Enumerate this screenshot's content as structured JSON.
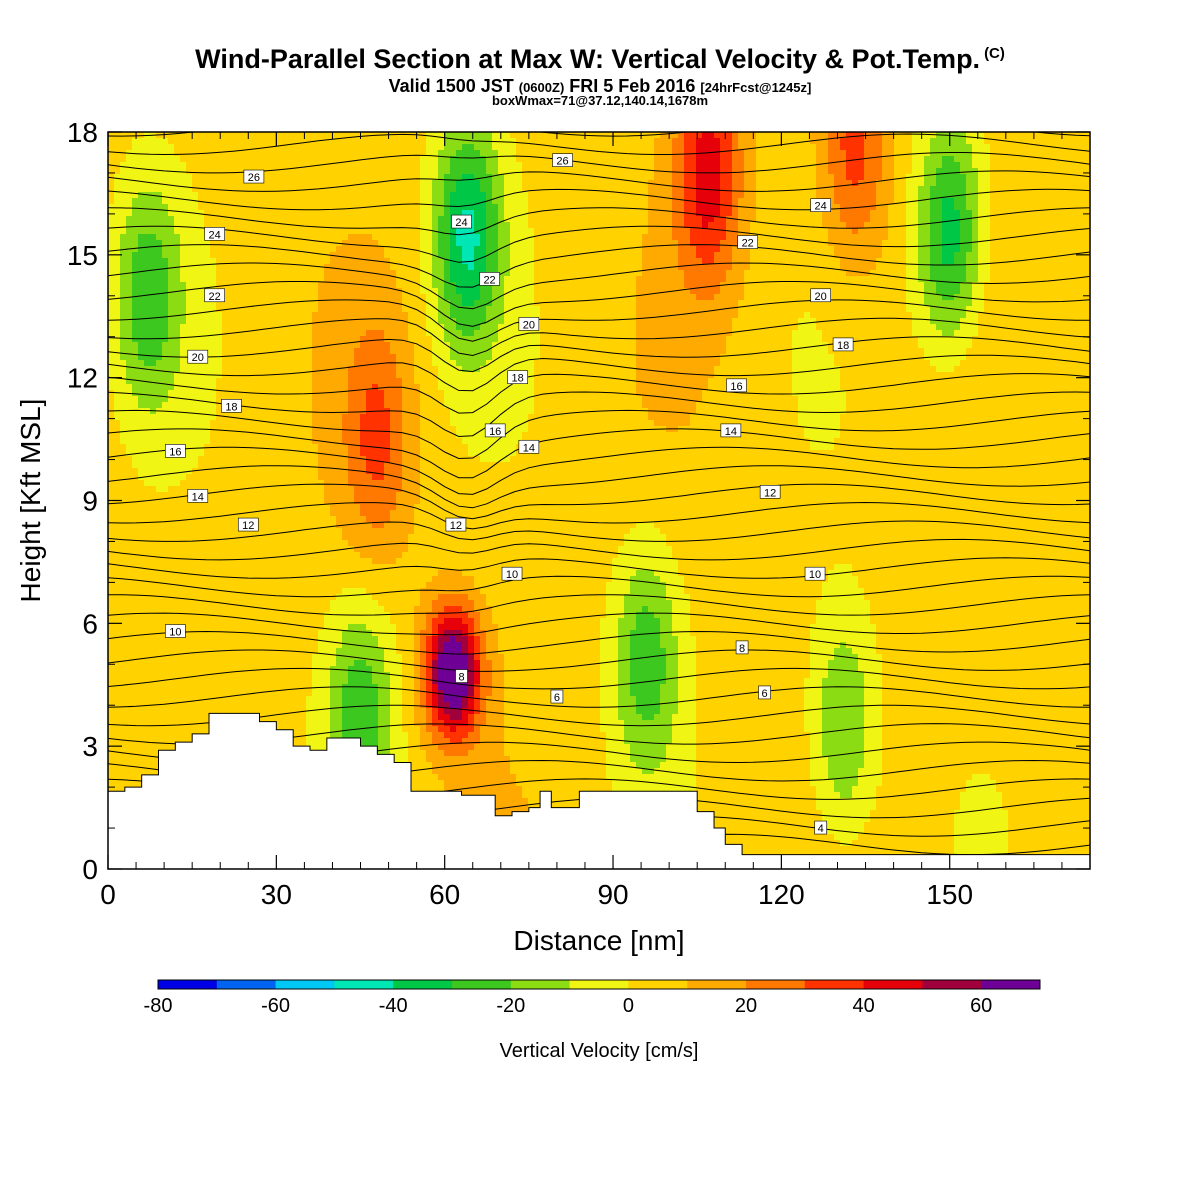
{
  "title": {
    "main": "Wind-Parallel Section at Max W: Vertical Velocity & Pot.Temp.",
    "copyright": "(C)",
    "valid_prefix": "Valid 1500 JST",
    "valid_z": "(0600Z)",
    "valid_date": "FRI 5 Feb 2016",
    "forecast": "[24hrFcst@1245z]",
    "boxwmax": "boxWmax=71@37.12,140.14,1678m"
  },
  "chart_data": {
    "type": "heatmap",
    "xlabel": "Distance [nm]",
    "ylabel": "Height [Kft MSL]",
    "xlim": [
      0,
      175
    ],
    "ylim": [
      0,
      18
    ],
    "xticks": [
      0,
      30,
      60,
      90,
      120,
      150
    ],
    "yticks": [
      0,
      3,
      6,
      9,
      12,
      15,
      18
    ],
    "colorbar": {
      "label": "Vertical Velocity [cm/s]",
      "bounds": [
        -80,
        70
      ],
      "step": 10,
      "tick_labels": [
        "-80",
        "-60",
        "-40",
        "-20",
        "0",
        "20",
        "40",
        "60"
      ],
      "colors": [
        "#0000e6",
        "#0064f0",
        "#00c8f5",
        "#00e6b4",
        "#00c846",
        "#3cc81e",
        "#8cdc14",
        "#f0f514",
        "#ffd200",
        "#ffaa00",
        "#ff7800",
        "#ff3200",
        "#e6000a",
        "#a0003c",
        "#6e0096"
      ]
    },
    "features": [
      {
        "kind": "updraft-max",
        "x": 61.5,
        "y": 4.8,
        "w": 71,
        "label": "boxWmax"
      },
      {
        "kind": "updraft",
        "x": 48,
        "y": 10.5,
        "w": 25
      },
      {
        "kind": "updraft",
        "x": 107,
        "y": 17,
        "w": 40
      },
      {
        "kind": "updraft",
        "x": 133,
        "y": 17.5,
        "w": 30
      },
      {
        "kind": "downdraft",
        "x": 64,
        "y": 15.5,
        "w": -45
      },
      {
        "kind": "downdraft",
        "x": 150,
        "y": 15.5,
        "w": -42
      },
      {
        "kind": "downdraft",
        "x": 7,
        "y": 14,
        "w": -30
      },
      {
        "kind": "downdraft",
        "x": 45,
        "y": 3.8,
        "w": -30
      },
      {
        "kind": "downdraft",
        "x": 131,
        "y": 3.4,
        "w": -28
      },
      {
        "kind": "downdraft",
        "x": 96,
        "y": 5.2,
        "w": -30
      }
    ],
    "theta_contour_labels": [
      {
        "x": 26,
        "y": 16.9,
        "t": "26"
      },
      {
        "x": 81,
        "y": 17.3,
        "t": "26"
      },
      {
        "x": 63,
        "y": 15.8,
        "t": "24"
      },
      {
        "x": 127,
        "y": 16.2,
        "t": "24"
      },
      {
        "x": 19,
        "y": 15.5,
        "t": "24"
      },
      {
        "x": 68,
        "y": 14.4,
        "t": "22"
      },
      {
        "x": 114,
        "y": 15.3,
        "t": "22"
      },
      {
        "x": 19,
        "y": 14.0,
        "t": "22"
      },
      {
        "x": 75,
        "y": 13.3,
        "t": "20"
      },
      {
        "x": 127,
        "y": 14.0,
        "t": "20"
      },
      {
        "x": 16,
        "y": 12.5,
        "t": "20"
      },
      {
        "x": 73,
        "y": 12.0,
        "t": "18"
      },
      {
        "x": 131,
        "y": 12.8,
        "t": "18"
      },
      {
        "x": 22,
        "y": 11.3,
        "t": "18"
      },
      {
        "x": 69,
        "y": 10.7,
        "t": "16"
      },
      {
        "x": 112,
        "y": 11.8,
        "t": "16"
      },
      {
        "x": 12,
        "y": 10.2,
        "t": "16"
      },
      {
        "x": 75,
        "y": 10.3,
        "t": "14"
      },
      {
        "x": 111,
        "y": 10.7,
        "t": "14"
      },
      {
        "x": 16,
        "y": 9.1,
        "t": "14"
      },
      {
        "x": 62,
        "y": 8.4,
        "t": "12"
      },
      {
        "x": 118,
        "y": 9.2,
        "t": "12"
      },
      {
        "x": 25,
        "y": 8.4,
        "t": "12"
      },
      {
        "x": 72,
        "y": 7.2,
        "t": "10"
      },
      {
        "x": 126,
        "y": 7.2,
        "t": "10"
      },
      {
        "x": 12,
        "y": 5.8,
        "t": "10"
      },
      {
        "x": 63,
        "y": 4.7,
        "t": "8"
      },
      {
        "x": 113,
        "y": 5.4,
        "t": "8"
      },
      {
        "x": 80,
        "y": 4.2,
        "t": "6"
      },
      {
        "x": 117,
        "y": 4.3,
        "t": "6"
      },
      {
        "x": 127,
        "y": 1.0,
        "t": "4"
      }
    ],
    "terrain_top_kft": [
      [
        0,
        1.9
      ],
      [
        3,
        2.0
      ],
      [
        6,
        2.3
      ],
      [
        9,
        2.9
      ],
      [
        12,
        3.1
      ],
      [
        15,
        3.3
      ],
      [
        18,
        3.8
      ],
      [
        21,
        3.8
      ],
      [
        24,
        3.8
      ],
      [
        27,
        3.6
      ],
      [
        30,
        3.4
      ],
      [
        33,
        3.0
      ],
      [
        36,
        2.9
      ],
      [
        39,
        3.2
      ],
      [
        42,
        3.2
      ],
      [
        45,
        3.0
      ],
      [
        48,
        2.8
      ],
      [
        51,
        2.6
      ],
      [
        54,
        1.9
      ],
      [
        60,
        1.9
      ],
      [
        63,
        1.8
      ],
      [
        66,
        1.8
      ],
      [
        69,
        1.3
      ],
      [
        72,
        1.4
      ],
      [
        75,
        1.5
      ],
      [
        77,
        1.9
      ],
      [
        79,
        1.5
      ],
      [
        84,
        1.9
      ],
      [
        96,
        1.9
      ],
      [
        102,
        1.9
      ],
      [
        105,
        1.4
      ],
      [
        108,
        1.0
      ],
      [
        110,
        0.6
      ],
      [
        113,
        0.35
      ],
      [
        175,
        0.35
      ]
    ]
  }
}
